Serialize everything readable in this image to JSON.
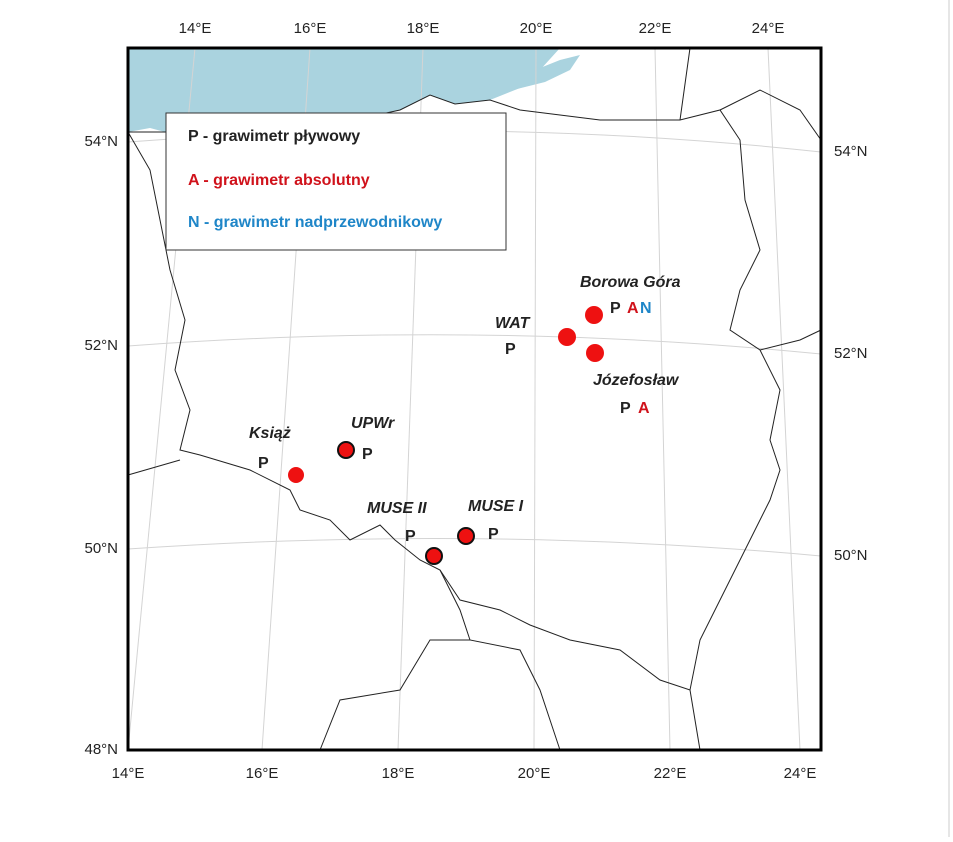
{
  "map": {
    "top_labels": [
      "14°E",
      "16°E",
      "18°E",
      "20°E",
      "22°E",
      "24°E"
    ],
    "bottom_labels": [
      "14°E",
      "16°E",
      "18°E",
      "20°E",
      "22°E",
      "24°E"
    ],
    "left_labels": [
      "54°N",
      "52°N",
      "50°N",
      "48°N"
    ],
    "right_labels": [
      "54°N",
      "52°N",
      "50°N"
    ]
  },
  "legend": {
    "items": [
      "P - grawimetr pływowy",
      "A - grawimetr absolutny",
      "N - grawimetr nadprzewodnikowy"
    ]
  },
  "stations": [
    {
      "name": "Borowa Góra",
      "letters": [
        "P",
        "A",
        "N"
      ]
    },
    {
      "name": "WAT",
      "letters": [
        "P"
      ]
    },
    {
      "name": "Józefosław",
      "letters": [
        "P",
        "A"
      ]
    },
    {
      "name": "Książ",
      "letters": [
        "P"
      ]
    },
    {
      "name": "UPWr",
      "letters": [
        "P"
      ]
    },
    {
      "name": "MUSE II",
      "letters": [
        "P"
      ]
    },
    {
      "name": "MUSE I",
      "letters": [
        "P"
      ]
    }
  ]
}
